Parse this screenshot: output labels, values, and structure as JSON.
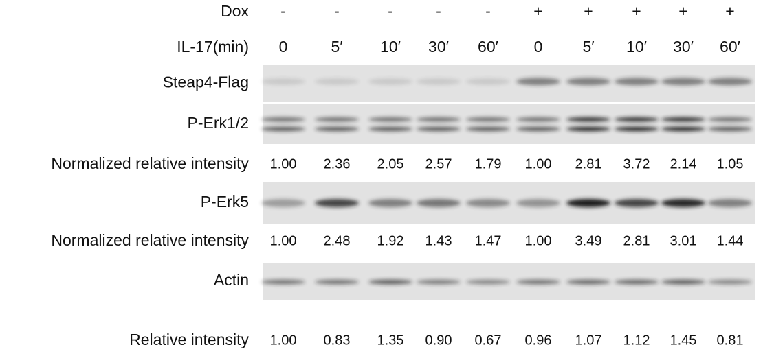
{
  "header_rows": [
    {
      "label": "Dox",
      "values": [
        "-",
        "-",
        "-",
        "-",
        "-",
        "+",
        "+",
        "+",
        "+",
        "+"
      ]
    },
    {
      "label": "IL-17(min)",
      "values": [
        "0",
        "5′",
        "10′",
        "30′",
        "60′",
        "0",
        "5′",
        "10′",
        "30′",
        "60′"
      ]
    }
  ],
  "blots": [
    {
      "label": "Steap4-Flag"
    },
    {
      "label": "P-Erk1/2"
    },
    {
      "label": "P-Erk5"
    },
    {
      "label": "Actin"
    }
  ],
  "intensity_rows": [
    {
      "label": "Normalized relative intensity",
      "values": [
        "1.00",
        "2.36",
        "2.05",
        "2.57",
        "1.79",
        "1.00",
        "2.81",
        "3.72",
        "2.14",
        "1.05"
      ]
    },
    {
      "label": "Normalized relative intensity",
      "values": [
        "1.00",
        "2.48",
        "1.92",
        "1.43",
        "1.47",
        "1.00",
        "3.49",
        "2.81",
        "3.01",
        "1.44"
      ]
    },
    {
      "label": "Relative intensity",
      "values": [
        "1.00",
        "0.83",
        "1.35",
        "0.90",
        "0.67",
        "0.96",
        "1.07",
        "1.12",
        "1.45",
        "0.81"
      ]
    }
  ]
}
